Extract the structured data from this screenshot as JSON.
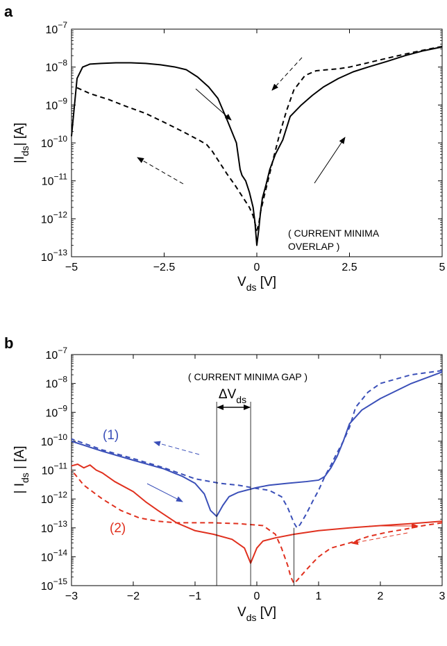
{
  "figure": {
    "panels": [
      {
        "panel_label": "a",
        "annotation_lines": [
          "( CURRENT MINIMA",
          "OVERLAP )"
        ],
        "xlabel": {
          "main": "V",
          "sub": "ds",
          "rest": " [V]"
        },
        "ylabel": {
          "main": "|I",
          "sub": "ds",
          "rest": "| [A]"
        }
      },
      {
        "panel_label": "b",
        "annotation_lines": [
          "( CURRENT MINIMA GAP )"
        ],
        "delta_label": {
          "main": "ΔV",
          "sub": "ds"
        },
        "series_labels": [
          "(1)",
          "(2)"
        ],
        "xlabel": {
          "main": "V",
          "sub": "ds",
          "rest": " [V]"
        },
        "ylabel": {
          "main": "| I",
          "sub": "ds",
          "rest": " | [A]"
        }
      }
    ]
  },
  "chart_data": [
    {
      "type": "line",
      "yscale": "log",
      "xlim": [
        -5,
        5
      ],
      "ylim": [
        1e-13,
        1e-07
      ],
      "xticks": [
        {
          "v": -5,
          "label": "−5"
        },
        {
          "v": -2.5,
          "label": "−2.5"
        },
        {
          "v": 0,
          "label": "0"
        },
        {
          "v": 2.5,
          "label": "2.5"
        },
        {
          "v": 5,
          "label": "5"
        }
      ],
      "yticks_exponents": [
        -13,
        -12,
        -11,
        -10,
        -9,
        -8,
        -7
      ],
      "colors": {
        "forward": "#000000",
        "reverse": "#000000"
      },
      "series": [
        {
          "style": "solid",
          "color": "#000000",
          "x": [
            -5,
            -4.85,
            -4.7,
            -4.5,
            -4.2,
            -3.8,
            -3.4,
            -3,
            -2.6,
            -2.2,
            -1.9,
            -1.6,
            -1.3,
            -1.05,
            -0.8,
            -0.55,
            -0.45,
            -0.4,
            -0.3,
            -0.2,
            -0.1,
            -0.05,
            0,
            0.05,
            0.1,
            0.15,
            0.25,
            0.35,
            0.5,
            0.7,
            0.9,
            1.2,
            1.5,
            1.8,
            2.2,
            2.6,
            3,
            3.5,
            4,
            4.5,
            5
          ],
          "y": [
            1.5e-10,
            5e-09,
            1e-08,
            1.2e-08,
            1.25e-08,
            1.3e-08,
            1.3e-08,
            1.25e-08,
            1.15e-08,
            1e-08,
            8.5e-09,
            5.5e-09,
            3e-09,
            1.5e-09,
            4e-10,
            1e-10,
            2e-11,
            1.4e-11,
            1e-11,
            5e-12,
            2e-12,
            8e-13,
            2e-13,
            5e-13,
            1.5e-12,
            3.5e-12,
            8e-12,
            2e-11,
            5e-11,
            1.2e-10,
            5e-10,
            1e-09,
            1.8e-09,
            3e-09,
            5e-09,
            7.5e-09,
            1e-08,
            1.4e-08,
            2e-08,
            2.7e-08,
            3.4e-08
          ]
        },
        {
          "style": "dashed",
          "color": "#000000",
          "x": [
            5,
            4.5,
            4,
            3.5,
            3,
            2.5,
            2.2,
            1.9,
            1.6,
            1.3,
            1,
            0.8,
            0.6,
            0.45,
            0.3,
            0.2,
            0.1,
            0.05,
            0,
            -0.1,
            -0.2,
            -0.4,
            -0.6,
            -0.8,
            -1,
            -1.2,
            -1.35,
            -1.5,
            -2,
            -2.5,
            -3,
            -3.5,
            -4,
            -4.5,
            -4.9
          ],
          "y": [
            3.5e-08,
            2.8e-08,
            2.2e-08,
            1.7e-08,
            1.3e-08,
            1e-08,
            9e-09,
            8.5e-09,
            8e-09,
            6e-09,
            2.5e-09,
            7e-10,
            1.5e-10,
            4e-11,
            1e-11,
            4e-12,
            1.5e-12,
            7e-13,
            5e-13,
            1.2e-12,
            2e-12,
            4e-12,
            8e-12,
            1.5e-11,
            3e-11,
            6e-11,
            9e-11,
            1.1e-10,
            2e-10,
            3.5e-10,
            6e-10,
            9e-10,
            1.4e-09,
            2e-09,
            3e-09
          ]
        }
      ]
    },
    {
      "type": "line",
      "yscale": "log",
      "xlim": [
        -3,
        3
      ],
      "ylim": [
        1e-15,
        1e-07
      ],
      "xticks": [
        {
          "v": -3,
          "label": "−3"
        },
        {
          "v": -2,
          "label": "−2"
        },
        {
          "v": -1,
          "label": "−1"
        },
        {
          "v": 0,
          "label": "0"
        },
        {
          "v": 1,
          "label": "1"
        },
        {
          "v": 2,
          "label": "2"
        },
        {
          "v": 3,
          "label": "3"
        }
      ],
      "yticks_exponents": [
        -15,
        -14,
        -13,
        -12,
        -11,
        -10,
        -9,
        -8,
        -7
      ],
      "colors": {
        "blue": "#3a4fb8",
        "red": "#e0301e"
      },
      "delta_vds_bounds": [
        -0.65,
        -0.1
      ],
      "series": [
        {
          "label": "(1)",
          "style": "solid",
          "color": "#3a4fb8",
          "x": [
            -3,
            -2.5,
            -2,
            -1.5,
            -1.2,
            -1,
            -0.85,
            -0.75,
            -0.65,
            -0.55,
            -0.45,
            -0.3,
            -0.1,
            0,
            0.2,
            0.5,
            0.8,
            1,
            1.1,
            1.2,
            1.3,
            1.4,
            1.5,
            1.7,
            2,
            2.5,
            3
          ],
          "y": [
            1e-10,
            4.5e-11,
            2.2e-11,
            1.1e-11,
            6e-12,
            3.5e-12,
            1.5e-12,
            4e-13,
            2.5e-13,
            6e-13,
            1.2e-12,
            1.7e-12,
            2.2e-12,
            2.5e-12,
            3e-12,
            3.5e-12,
            4e-12,
            4.5e-12,
            6e-12,
            1.2e-11,
            3e-11,
            1e-10,
            4e-10,
            1.2e-09,
            3e-09,
            1e-08,
            2.5e-08
          ]
        },
        {
          "label": "(1)",
          "style": "dashed",
          "color": "#3a4fb8",
          "x": [
            3,
            2.5,
            2,
            1.8,
            1.6,
            1.5,
            1.4,
            1.3,
            1.2,
            1.1,
            1,
            0.9,
            0.8,
            0.7,
            0.65,
            0.6,
            0.5,
            0.4,
            0.2,
            0,
            -0.3,
            -0.6,
            -1,
            -1.5,
            -2,
            -2.5,
            -3
          ],
          "y": [
            2.8e-08,
            2e-08,
            1e-08,
            5e-09,
            1.5e-09,
            3e-10,
            1e-10,
            4e-11,
            1.5e-11,
            6e-12,
            2e-12,
            8e-13,
            3e-13,
            1.3e-13,
            1e-13,
            1.5e-13,
            5e-13,
            1.2e-12,
            2e-12,
            2.3e-12,
            3e-12,
            3.5e-12,
            5e-12,
            1.2e-11,
            2.5e-11,
            5e-11,
            1.2e-10
          ]
        },
        {
          "label": "(2)",
          "style": "solid",
          "color": "#e0301e",
          "x": [
            -3,
            -2.9,
            -2.8,
            -2.7,
            -2.6,
            -2.5,
            -2.3,
            -2,
            -1.8,
            -1.6,
            -1.3,
            -1,
            -0.7,
            -0.4,
            -0.2,
            -0.1,
            0,
            0.1,
            0.3,
            0.6,
            1,
            1.5,
            2,
            2.5,
            3
          ],
          "y": [
            1.4e-11,
            1.6e-11,
            1.2e-11,
            1.5e-11,
            1e-11,
            8e-12,
            4e-12,
            1.8e-12,
            8e-13,
            4e-13,
            1.5e-13,
            8e-14,
            6e-14,
            4e-14,
            2e-14,
            6e-15,
            2e-14,
            3.5e-14,
            4.5e-14,
            6e-14,
            8e-14,
            1e-13,
            1.2e-13,
            1.4e-13,
            1.7e-13
          ]
        },
        {
          "label": "(2)",
          "style": "dashed",
          "color": "#e0301e",
          "x": [
            3,
            2.7,
            2.4,
            2.1,
            1.8,
            1.5,
            1.2,
            1,
            0.9,
            0.8,
            0.7,
            0.65,
            0.6,
            0.55,
            0.5,
            0.4,
            0.3,
            0.1,
            -0.3,
            -0.7,
            -1,
            -1.3,
            -1.6,
            -1.9,
            -2.2,
            -2.5,
            -2.8,
            -3
          ],
          "y": [
            1.5e-13,
            1.2e-13,
            9e-14,
            7e-14,
            5e-14,
            3e-14,
            2e-14,
            1e-14,
            6e-15,
            3.5e-15,
            2e-15,
            1.5e-15,
            1.2e-15,
            2e-15,
            5e-15,
            2e-14,
            6e-14,
            1.2e-13,
            1.4e-13,
            1.5e-13,
            1.5e-13,
            1.5e-13,
            1.7e-13,
            2.2e-13,
            4e-13,
            1e-12,
            3e-12,
            1e-11
          ]
        }
      ]
    }
  ]
}
